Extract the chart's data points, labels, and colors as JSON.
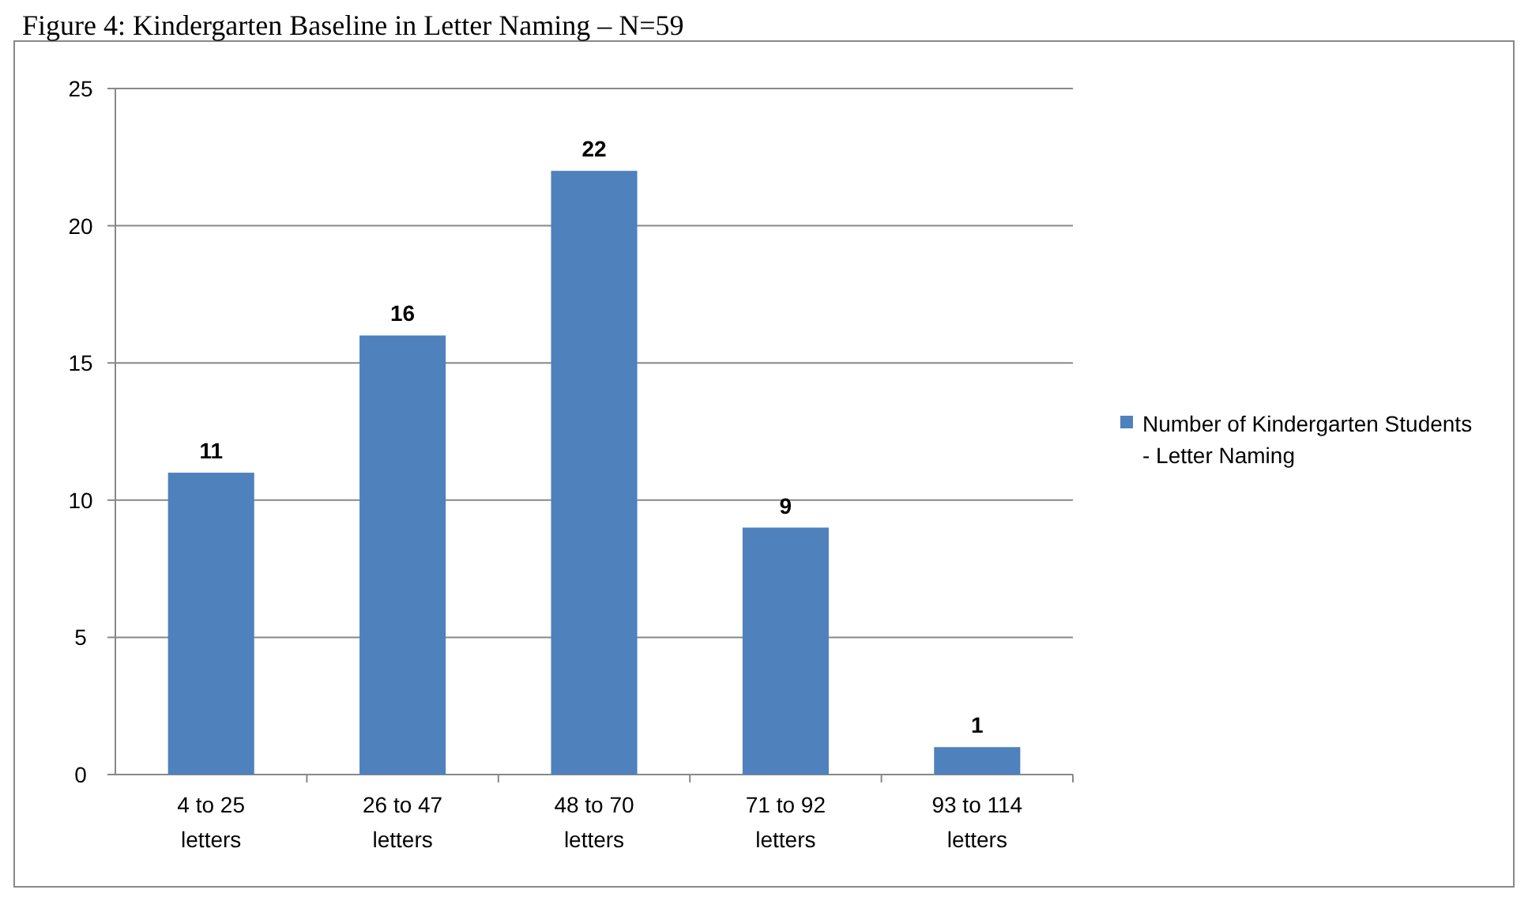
{
  "chart_data": {
    "type": "bar",
    "title": "Figure 4: Kindergarten Baseline in Letter Naming – N=59",
    "categories": [
      "4 to 25 letters",
      "26 to 47 letters",
      "48 to 70 letters",
      "71 to 92 letters",
      "93 to 114 letters"
    ],
    "series": [
      {
        "name": "Number of Kindergarten Students - Letter Naming",
        "color": "#4f81bd",
        "values": [
          11,
          16,
          22,
          9,
          1
        ]
      }
    ],
    "ylim": [
      0,
      25
    ],
    "yticks": [
      0,
      5,
      10,
      15,
      20,
      25
    ],
    "grid": "y",
    "legend": "right",
    "data_labels": true
  }
}
